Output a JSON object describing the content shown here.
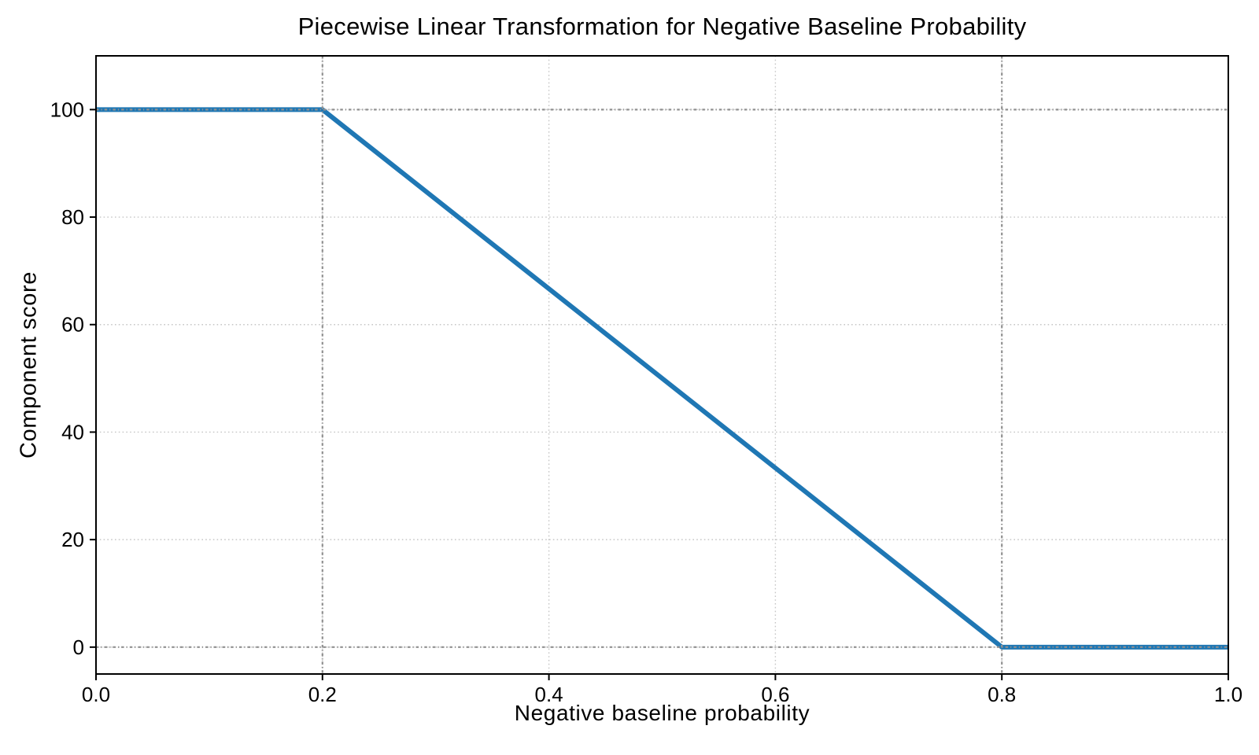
{
  "figure": {
    "background": "#ffffff",
    "axis_color": "#000000",
    "text_color": "#000000"
  },
  "chart_data": {
    "type": "line",
    "title": "Piecewise Linear Transformation for Negative Baseline Probability",
    "xlabel": "Negative baseline probability",
    "ylabel": "Component score",
    "xlim": [
      0,
      1
    ],
    "ylim": [
      -5,
      110
    ],
    "xticks": [
      0.0,
      0.2,
      0.4,
      0.6,
      0.8,
      1.0
    ],
    "xtick_labels": [
      "0.0",
      "0.2",
      "0.4",
      "0.6",
      "0.8",
      "1.0"
    ],
    "yticks": [
      0,
      20,
      40,
      60,
      80,
      100
    ],
    "ytick_labels": [
      "0",
      "20",
      "40",
      "60",
      "80",
      "100"
    ],
    "grid": {
      "visible": true,
      "color": "#c6c6c6",
      "style": "dotted"
    },
    "reference_lines": {
      "vertical_x": [
        0.2,
        0.8
      ],
      "horizontal_y": [
        0,
        100
      ],
      "color": "#909090",
      "style": "dash-dot"
    },
    "series": [
      {
        "name": "piecewise-transformation",
        "color": "#1f77b4",
        "linewidth": 6,
        "points": [
          [
            0.0,
            100
          ],
          [
            0.2,
            100
          ],
          [
            0.8,
            0
          ],
          [
            1.0,
            0
          ]
        ]
      }
    ],
    "legend": {
      "visible": false
    }
  }
}
